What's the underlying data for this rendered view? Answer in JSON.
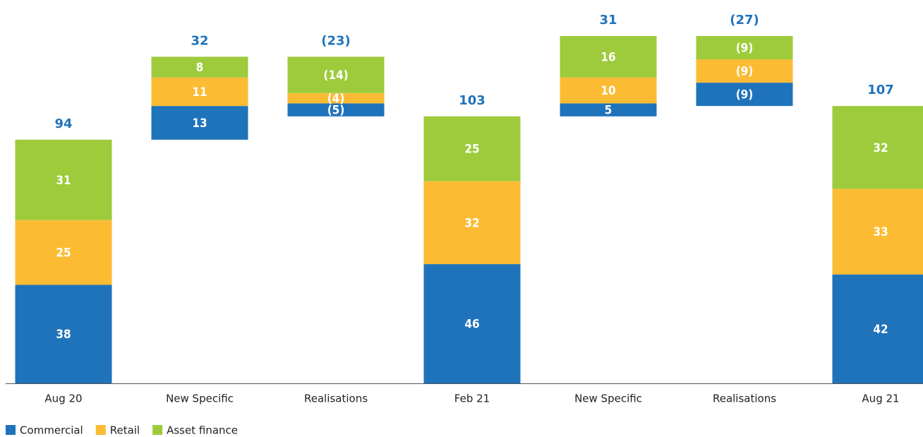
{
  "chart_data": {
    "type": "waterfall",
    "categories": [
      "Aug 20",
      "New Specific",
      "Realisations",
      "Feb 21",
      "New Specific",
      "Realisations",
      "Aug 21"
    ],
    "series": [
      {
        "name": "Commercial",
        "color": "#1f73bb",
        "values": [
          38,
          13,
          -5,
          46,
          5,
          -9,
          42
        ],
        "value_labels": [
          "38",
          "13",
          "(5)",
          "46",
          "5",
          "(9)",
          "42"
        ]
      },
      {
        "name": "Retail",
        "color": "#fbbc34",
        "values": [
          25,
          11,
          -4,
          32,
          10,
          -9,
          33
        ],
        "value_labels": [
          "25",
          "11",
          "(4)",
          "32",
          "10",
          "(9)",
          "33"
        ]
      },
      {
        "name": "Asset finance",
        "color": "#9dcb3c",
        "values": [
          31,
          8,
          -14,
          25,
          16,
          -9,
          32
        ],
        "value_labels": [
          "31",
          "8",
          "(14)",
          "25",
          "16",
          "(9)",
          "32"
        ]
      }
    ],
    "totals": {
      "values": [
        94,
        32,
        -23,
        103,
        31,
        -27,
        107
      ],
      "value_labels": [
        "94",
        "32",
        "(23)",
        "103",
        "31",
        "(27)",
        "107"
      ]
    }
  }
}
